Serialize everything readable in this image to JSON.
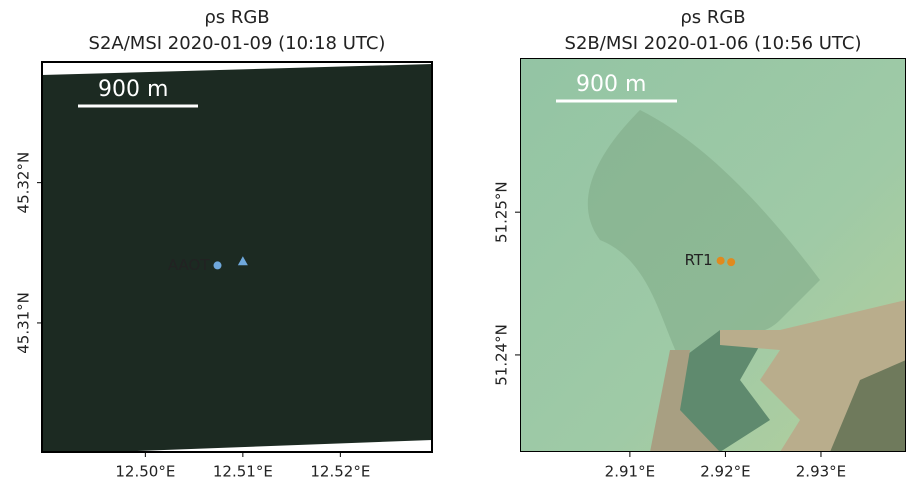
{
  "chart_data": [
    {
      "type": "image",
      "title": [
        "ρs RGB",
        "S2A/MSI 2020-01-09 (10:18 UTC)"
      ],
      "scale_bar": "900 m",
      "xlim": [
        12.4894,
        12.5294
      ],
      "ylim": [
        45.3008,
        45.3286
      ],
      "xticks": [
        {
          "value": 12.5,
          "label": "12.50°E"
        },
        {
          "value": 12.51,
          "label": "12.51°E"
        },
        {
          "value": 12.52,
          "label": "12.52°E"
        }
      ],
      "yticks": [
        {
          "value": 45.31,
          "label": "45.31°N"
        },
        {
          "value": 45.32,
          "label": "45.32°N"
        }
      ],
      "station": {
        "name": "AAOT",
        "color": "#6fa8dc",
        "points": [
          {
            "lon": 12.5074,
            "lat": 45.3141,
            "marker": "circle"
          },
          {
            "lon": 12.51,
            "lat": 45.3144,
            "marker": "triangle"
          }
        ]
      }
    },
    {
      "type": "image",
      "title": [
        "ρs RGB",
        "S2B/MSI 2020-01-06 (10:56 UTC)"
      ],
      "scale_bar": "900 m",
      "xlim": [
        2.8985,
        2.9389
      ],
      "ylim": [
        51.2332,
        51.2608
      ],
      "xticks": [
        {
          "value": 2.91,
          "label": "2.91°E"
        },
        {
          "value": 2.92,
          "label": "2.92°E"
        },
        {
          "value": 2.93,
          "label": "2.93°E"
        }
      ],
      "yticks": [
        {
          "value": 51.24,
          "label": "51.24°N"
        },
        {
          "value": 51.25,
          "label": "51.25°N"
        }
      ],
      "station": {
        "name": "RT1",
        "color": "#e08a1e",
        "points": [
          {
            "lon": 2.9195,
            "lat": 51.2466,
            "marker": "circle"
          },
          {
            "lon": 2.9206,
            "lat": 51.2465,
            "marker": "circle"
          }
        ]
      }
    }
  ]
}
